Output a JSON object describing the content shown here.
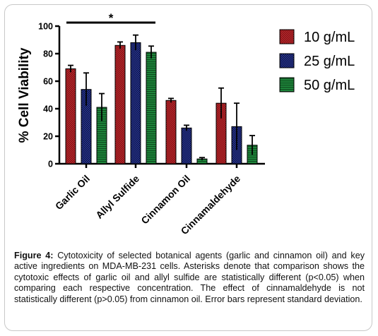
{
  "chart_data": {
    "type": "bar",
    "ylabel": "% Cell Viability",
    "xlabel": "",
    "ylim": [
      0,
      100
    ],
    "yticks": [
      0,
      20,
      40,
      60,
      80,
      100
    ],
    "categories": [
      "Garlic Oil",
      "Allyl Sulfide",
      "Cinnamon Oil",
      "Cinnamaldehyde"
    ],
    "series": [
      {
        "name": "10 g/mL",
        "color": "#c0262b",
        "values": [
          69,
          86,
          46,
          44
        ],
        "errors": [
          2.5,
          2.5,
          1.5,
          11
        ]
      },
      {
        "name": "25 g/mL",
        "color": "#1f2a80",
        "values": [
          54,
          88,
          26,
          27
        ],
        "errors": [
          12,
          5.5,
          2,
          17
        ]
      },
      {
        "name": "50 g/mL",
        "color": "#1f8a3d",
        "values": [
          41,
          81,
          3.5,
          13.5
        ],
        "errors": [
          10,
          4.5,
          1,
          7
        ]
      }
    ],
    "legend_position": "right",
    "grid": false,
    "annotations": [
      {
        "text": "*",
        "type": "significance-bar",
        "from": "Garlic Oil",
        "to": "Allyl Sulfide"
      }
    ]
  },
  "caption": {
    "figure_label": "Figure 4:",
    "text": "Cytotoxicity of selected botanical agents (garlic and cinnamon oil) and key active ingredients on MDA-MB-231 cells. Asterisks denote that comparison shows the cytotoxic effects of garlic oil and allyl sulfide are statistically different (p<0.05) when comparing each respective concentration. The effect of cinnamaldehyde is not statistically different (p>0.05) from cinnamon oil. Error bars represent standard deviation."
  }
}
